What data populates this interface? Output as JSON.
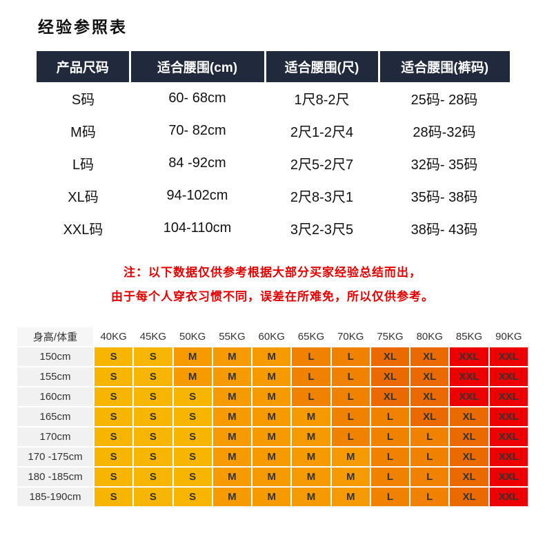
{
  "page": {
    "title": "经验参照表"
  },
  "size_table": {
    "headers": [
      "产品尺码",
      "适合腰围(cm)",
      "适合腰围(尺)",
      "适合腰围(裤码)"
    ],
    "rows": [
      [
        "S码",
        "60- 68cm",
        "1尺8-2尺",
        "25码- 28码"
      ],
      [
        "M码",
        "70- 82cm",
        "2尺1-2尺4",
        "28码-32码"
      ],
      [
        "L码",
        "84 -92cm",
        "2尺5-2尺7",
        "32码- 35码"
      ],
      [
        "XL码",
        "94-102cm",
        "2尺8-3尺1",
        "35码- 38码"
      ],
      [
        "XXL码",
        "104-110cm",
        "3尺2-3尺5",
        "38码- 43码"
      ]
    ]
  },
  "note": {
    "line1": "注：以下数据仅供参考根据大部分买家经验总结而出，",
    "line2": "由于每个人穿衣习惯不同，误差在所难免，所以仅供参考。"
  },
  "matrix": {
    "corner": "身高/体重",
    "weights": [
      "40KG",
      "45KG",
      "50KG",
      "55KG",
      "60KG",
      "65KG",
      "70KG",
      "75KG",
      "80KG",
      "85KG",
      "90KG"
    ],
    "rows": [
      {
        "height": "150cm",
        "sizes": [
          "S",
          "S",
          "M",
          "M",
          "M",
          "L",
          "L",
          "XL",
          "XL",
          "XXL",
          "XXL"
        ]
      },
      {
        "height": "155cm",
        "sizes": [
          "S",
          "S",
          "M",
          "M",
          "M",
          "L",
          "L",
          "XL",
          "XL",
          "XXL",
          "XXL"
        ]
      },
      {
        "height": "160cm",
        "sizes": [
          "S",
          "S",
          "S",
          "M",
          "M",
          "L",
          "L",
          "XL",
          "XL",
          "XXL",
          "XXL"
        ]
      },
      {
        "height": "165cm",
        "sizes": [
          "S",
          "S",
          "S",
          "M",
          "M",
          "M",
          "L",
          "L",
          "XL",
          "XL",
          "XXL"
        ]
      },
      {
        "height": "170cm",
        "sizes": [
          "S",
          "S",
          "S",
          "M",
          "M",
          "M",
          "L",
          "L",
          "L",
          "XL",
          "XXL"
        ]
      },
      {
        "height": "170 -175cm",
        "sizes": [
          "S",
          "S",
          "S",
          "M",
          "M",
          "M",
          "M",
          "L",
          "L",
          "XL",
          "XXL"
        ]
      },
      {
        "height": "180 -185cm",
        "sizes": [
          "S",
          "S",
          "S",
          "M",
          "M",
          "M",
          "M",
          "L",
          "L",
          "XL",
          "XXL"
        ]
      },
      {
        "height": "185-190cm",
        "sizes": [
          "S",
          "S",
          "S",
          "M",
          "M",
          "M",
          "M",
          "L",
          "L",
          "XL",
          "XXL"
        ]
      }
    ],
    "size_colors": {
      "S": "#f7b500",
      "M": "#f59b00",
      "L": "#f08200",
      "XL": "#eb6a00",
      "XXL": "#ee0000"
    }
  },
  "colors": {
    "table_header_bg": "#212a3c",
    "note_red": "#e60000",
    "label_cell_bg": "#f1f1f1"
  }
}
